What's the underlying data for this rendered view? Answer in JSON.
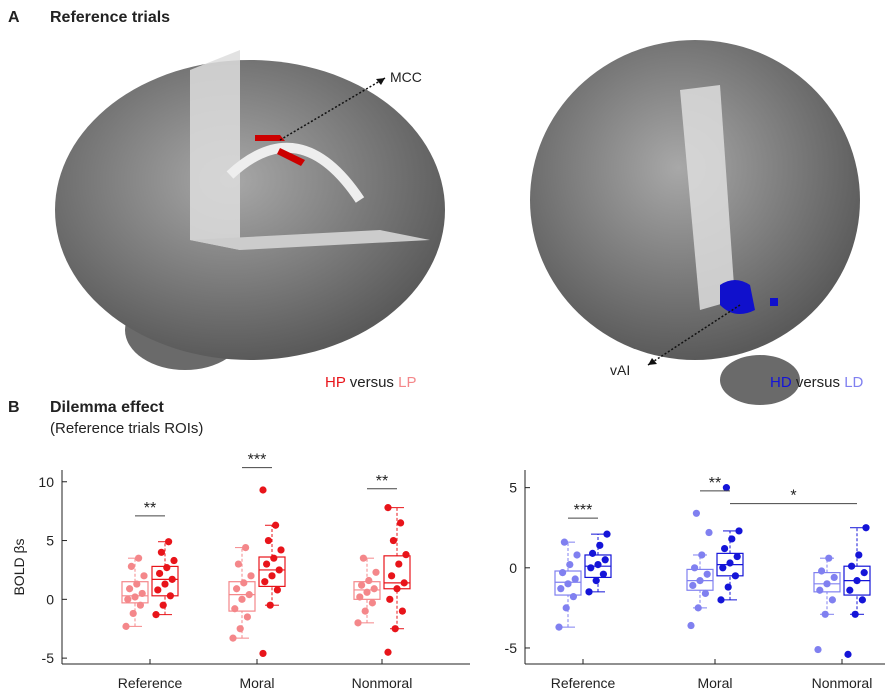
{
  "panels": {
    "a_label": "A",
    "a_title": "Reference trials",
    "mcc": "MCC",
    "vai": "vAI",
    "b_label": "B",
    "b_title": "Dilemma effect",
    "b_subtitle": "(Reference trials ROIs)"
  },
  "chart_data": [
    {
      "type": "box",
      "ylabel": "BOLD βs",
      "categories": [
        "Reference",
        "Moral",
        "Nonmoral"
      ],
      "ylim": [
        -5.5,
        11
      ],
      "yticks": [
        -5,
        0,
        5,
        10
      ],
      "legend_joiner": "versus",
      "series": [
        {
          "name": "LP",
          "color": "#f4878a",
          "boxes": [
            {
              "whisker_low": -2.3,
              "q1": -0.3,
              "median": 0.3,
              "q3": 1.5,
              "whisker_high": 3.5,
              "points": [
                -2.3,
                -1.2,
                -0.5,
                0,
                0.2,
                0.5,
                0.9,
                1.3,
                2,
                2.8,
                3.5
              ]
            },
            {
              "whisker_low": -3.3,
              "q1": -1,
              "median": 0.4,
              "q3": 1.5,
              "whisker_high": 4.4,
              "points": [
                -3.3,
                -2.5,
                -1.5,
                -0.8,
                0,
                0.4,
                0.9,
                1.4,
                2,
                3,
                4.4
              ]
            },
            {
              "whisker_low": -2,
              "q1": 0,
              "median": 0.8,
              "q3": 1.5,
              "whisker_high": 3.5,
              "points": [
                -2,
                -1,
                -0.3,
                0.2,
                0.6,
                0.9,
                1.2,
                1.6,
                2.3,
                3.5
              ]
            }
          ]
        },
        {
          "name": "HP",
          "color": "#e8141a",
          "boxes": [
            {
              "whisker_low": -1.3,
              "q1": 0.3,
              "median": 1.7,
              "q3": 2.8,
              "whisker_high": 4.9,
              "points": [
                -1.3,
                -0.5,
                0.3,
                0.8,
                1.3,
                1.7,
                2.2,
                2.7,
                3.3,
                4,
                4.9
              ]
            },
            {
              "whisker_low": -0.5,
              "q1": 1.1,
              "median": 2.5,
              "q3": 3.6,
              "whisker_high": 6.3,
              "points": [
                -4.6,
                -0.5,
                0.8,
                1.5,
                2,
                2.5,
                3,
                3.5,
                4.2,
                5,
                6.3,
                9.3
              ]
            },
            {
              "whisker_low": -2.5,
              "q1": 0.9,
              "median": 1.4,
              "q3": 3.7,
              "whisker_high": 7.8,
              "points": [
                -4.5,
                -2.5,
                -1,
                0,
                0.9,
                1.4,
                2,
                3,
                3.8,
                5,
                6.5,
                7.8
              ]
            }
          ]
        }
      ],
      "brackets": [
        {
          "label": "**",
          "y": 7.1,
          "from": [
            "Reference",
            "LP"
          ],
          "to": [
            "Reference",
            "HP"
          ]
        },
        {
          "label": "***",
          "y": 11.2,
          "from": [
            "Moral",
            "LP"
          ],
          "to": [
            "Moral",
            "HP"
          ]
        },
        {
          "label": "**",
          "y": 9.4,
          "from": [
            "Nonmoral",
            "LP"
          ],
          "to": [
            "Nonmoral",
            "HP"
          ]
        }
      ]
    },
    {
      "type": "box",
      "categories": [
        "Reference",
        "Moral",
        "Nonmoral"
      ],
      "ylim": [
        -6,
        6.1
      ],
      "yticks": [
        -5,
        0,
        5
      ],
      "legend_joiner": "versus",
      "series": [
        {
          "name": "LD",
          "color": "#8080f0",
          "boxes": [
            {
              "whisker_low": -3.7,
              "q1": -1.7,
              "median": -0.9,
              "q3": -0.2,
              "whisker_high": 1.6,
              "points": [
                -3.7,
                -2.5,
                -1.8,
                -1.3,
                -1,
                -0.7,
                -0.3,
                0.2,
                0.8,
                1.6
              ]
            },
            {
              "whisker_low": -2.5,
              "q1": -1.4,
              "median": -0.8,
              "q3": -0.1,
              "whisker_high": 0.8,
              "points": [
                -3.6,
                -2.5,
                -1.6,
                -1.1,
                -0.8,
                -0.4,
                0,
                0.8,
                2.2,
                3.4
              ]
            },
            {
              "whisker_low": -2.9,
              "q1": -1.5,
              "median": -1,
              "q3": -0.3,
              "whisker_high": 0.6,
              "points": [
                -5.1,
                -2.9,
                -2,
                -1.4,
                -1,
                -0.6,
                -0.2,
                0.6
              ]
            }
          ]
        },
        {
          "name": "HD",
          "color": "#1414d8",
          "boxes": [
            {
              "whisker_low": -1.5,
              "q1": -0.6,
              "median": 0.1,
              "q3": 0.8,
              "whisker_high": 2.1,
              "points": [
                -1.5,
                -0.8,
                -0.4,
                0,
                0.2,
                0.5,
                0.9,
                1.4,
                2.1
              ]
            },
            {
              "whisker_low": -2,
              "q1": -0.5,
              "median": 0.2,
              "q3": 0.9,
              "whisker_high": 2.3,
              "points": [
                -2,
                -1.2,
                -0.5,
                0,
                0.3,
                0.7,
                1.2,
                1.8,
                2.3,
                5
              ]
            },
            {
              "whisker_low": -2.9,
              "q1": -1.7,
              "median": -0.8,
              "q3": 0.1,
              "whisker_high": 2.5,
              "points": [
                -5.4,
                -2.9,
                -2,
                -1.4,
                -0.8,
                -0.3,
                0.1,
                0.8,
                2.5
              ]
            }
          ]
        }
      ],
      "brackets": [
        {
          "label": "***",
          "y": 3.1,
          "from": [
            "Reference",
            "LD"
          ],
          "to": [
            "Reference",
            "HD"
          ]
        },
        {
          "label": "**",
          "y": 4.8,
          "from": [
            "Moral",
            "LD"
          ],
          "to": [
            "Moral",
            "HD"
          ]
        },
        {
          "label": "*",
          "y": 4,
          "from": [
            "Moral",
            "HD"
          ],
          "to": [
            "Nonmoral",
            "HD"
          ]
        }
      ]
    }
  ]
}
